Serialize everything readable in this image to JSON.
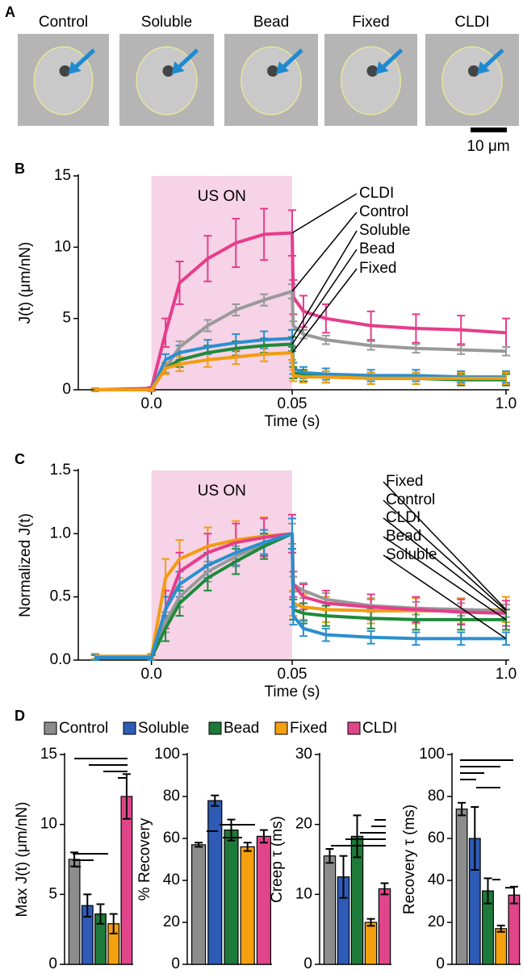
{
  "panel_a": {
    "panel": "A",
    "images": [
      "Control",
      "Soluble",
      "Bead",
      "Fixed",
      "CLDI"
    ],
    "scale_bar": "10 μm"
  },
  "chart_data": [
    {
      "type": "line",
      "panel": "B",
      "ylabel": "J(t) (μm/nN)",
      "xlabel": "Time (s)",
      "annotation": "US ON",
      "shade": [
        0,
        0.05
      ],
      "shade_color": "#f6d3e6",
      "x": [
        -0.02,
        0,
        0.005,
        0.01,
        0.02,
        0.03,
        0.04,
        0.05,
        0.055,
        0.1,
        0.2,
        0.4,
        0.6,
        0.8,
        1.0
      ],
      "xlim": [
        -0.026,
        1.0
      ],
      "xticks": [
        {
          "value": 0,
          "label": "0.0"
        },
        0.05,
        {
          "value": 1,
          "label": "1.0"
        }
      ],
      "ylim": [
        0,
        15
      ],
      "yticks": [
        0,
        5,
        10,
        15
      ],
      "series": [
        {
          "name": "CLDI",
          "color": "#e63c8c",
          "values": [
            0,
            0.1,
            4,
            7.5,
            9.2,
            10.3,
            10.9,
            11,
            6.5,
            5.5,
            5,
            4.5,
            4.3,
            4.2,
            4.0
          ],
          "errors": [
            0.1,
            0.1,
            1,
            1.5,
            1.6,
            1.7,
            1.8,
            1.6,
            1.2,
            1.1,
            1,
            1,
            1,
            1,
            1
          ]
        },
        {
          "name": "Control",
          "color": "#999999",
          "values": [
            0,
            0,
            1.5,
            3,
            4.5,
            5.6,
            6.3,
            6.9,
            4.5,
            3.9,
            3.5,
            3.1,
            2.9,
            2.8,
            2.7
          ],
          "errors": [
            0.1,
            0.1,
            0.3,
            0.4,
            0.4,
            0.4,
            0.4,
            0.5,
            0.3,
            0.3,
            0.3,
            0.3,
            0.3,
            0.3,
            0.3
          ]
        },
        {
          "name": "Soluble",
          "color": "#2a8fd0",
          "values": [
            0,
            0,
            2.1,
            2.6,
            3.0,
            3.3,
            3.5,
            3.6,
            1.5,
            1.2,
            1.1,
            1.0,
            1.0,
            0.9,
            0.9
          ],
          "errors": [
            0.1,
            0.1,
            0.4,
            0.5,
            0.5,
            0.6,
            0.6,
            0.6,
            0.4,
            0.4,
            0.4,
            0.4,
            0.4,
            0.4,
            0.4
          ]
        },
        {
          "name": "Bead",
          "color": "#1e8a3a",
          "values": [
            0,
            0,
            1.5,
            2.1,
            2.6,
            2.9,
            3.1,
            3.2,
            1.2,
            1.0,
            0.9,
            0.8,
            0.8,
            0.7,
            0.7
          ],
          "errors": [
            0.1,
            0.1,
            0.4,
            0.5,
            0.5,
            0.5,
            0.5,
            0.5,
            0.4,
            0.4,
            0.4,
            0.4,
            0.4,
            0.4,
            0.4
          ]
        },
        {
          "name": "Fixed",
          "color": "#f39c12",
          "values": [
            0,
            0,
            1.5,
            1.8,
            2.1,
            2.3,
            2.5,
            2.6,
            1.0,
            0.9,
            0.9,
            0.8,
            0.8,
            0.8,
            0.8
          ],
          "errors": [
            0.1,
            0.1,
            0.4,
            0.5,
            0.5,
            0.5,
            0.5,
            0.5,
            0.4,
            0.4,
            0.4,
            0.4,
            0.4,
            0.4,
            0.4
          ]
        }
      ]
    },
    {
      "type": "line",
      "panel": "C",
      "ylabel": "Normalized J(t)",
      "xlabel": "Time (s)",
      "annotation": "US ON",
      "shade": [
        0,
        0.05
      ],
      "shade_color": "#f6d3e6",
      "x": [
        -0.02,
        0,
        0.005,
        0.01,
        0.02,
        0.03,
        0.04,
        0.05,
        0.055,
        0.1,
        0.2,
        0.4,
        0.6,
        0.8,
        1.0
      ],
      "xlim": [
        -0.026,
        1.0
      ],
      "xticks": [
        {
          "value": 0,
          "label": "0.0"
        },
        0.05,
        {
          "value": 1,
          "label": "1.0"
        }
      ],
      "ylim": [
        0,
        1.5
      ],
      "yticks": [
        {
          "value": 0,
          "label": "0.0"
        },
        0.5,
        {
          "value": 1,
          "label": "1.0"
        },
        1.5
      ],
      "series": [
        {
          "name": "Fixed",
          "color": "#f39c12",
          "values": [
            0.03,
            0.03,
            0.65,
            0.8,
            0.9,
            0.95,
            0.98,
            1,
            0.45,
            0.42,
            0.4,
            0.39,
            0.39,
            0.39,
            0.4
          ],
          "errors": [
            0.02,
            0.02,
            0.15,
            0.15,
            0.15,
            0.15,
            0.15,
            0.15,
            0.1,
            0.1,
            0.1,
            0.1,
            0.1,
            0.1,
            0.1
          ]
        },
        {
          "name": "Control",
          "color": "#999999",
          "values": [
            0.02,
            0.02,
            0.3,
            0.5,
            0.7,
            0.82,
            0.92,
            1,
            0.6,
            0.55,
            0.48,
            0.43,
            0.41,
            0.4,
            0.39
          ],
          "errors": [
            0.02,
            0.02,
            0.08,
            0.08,
            0.08,
            0.08,
            0.08,
            0.08,
            0.06,
            0.06,
            0.05,
            0.05,
            0.05,
            0.05,
            0.05
          ]
        },
        {
          "name": "CLDI",
          "color": "#e63c8c",
          "values": [
            0.02,
            0.02,
            0.4,
            0.7,
            0.85,
            0.93,
            0.97,
            1,
            0.6,
            0.5,
            0.45,
            0.42,
            0.4,
            0.38,
            0.37
          ],
          "errors": [
            0.02,
            0.02,
            0.15,
            0.15,
            0.15,
            0.15,
            0.15,
            0.15,
            0.1,
            0.1,
            0.1,
            0.1,
            0.1,
            0.1,
            0.1
          ]
        },
        {
          "name": "Bead",
          "color": "#1e8a3a",
          "values": [
            0.02,
            0.02,
            0.25,
            0.45,
            0.65,
            0.78,
            0.9,
            1,
            0.4,
            0.37,
            0.35,
            0.33,
            0.32,
            0.32,
            0.32
          ],
          "errors": [
            0.02,
            0.02,
            0.1,
            0.1,
            0.1,
            0.1,
            0.1,
            0.12,
            0.08,
            0.08,
            0.08,
            0.08,
            0.08,
            0.08,
            0.08
          ]
        },
        {
          "name": "Soluble",
          "color": "#2a8fd0",
          "values": [
            0.02,
            0.02,
            0.4,
            0.6,
            0.75,
            0.85,
            0.93,
            1,
            0.35,
            0.25,
            0.2,
            0.18,
            0.17,
            0.17,
            0.17
          ],
          "errors": [
            0.02,
            0.02,
            0.1,
            0.1,
            0.1,
            0.1,
            0.1,
            0.12,
            0.07,
            0.06,
            0.05,
            0.05,
            0.05,
            0.05,
            0.05
          ]
        }
      ]
    },
    {
      "type": "bar",
      "panel": "D",
      "ylabel": "Max J(t) (μm/nN)",
      "categories": [
        "Control",
        "Soluble",
        "Bead",
        "Fixed",
        "CLDI"
      ],
      "colors": [
        "#8c8c8c",
        "#2d5bb5",
        "#1e7a3a",
        "#f5a00f",
        "#e0458a"
      ],
      "values": [
        7.5,
        4.2,
        3.6,
        2.9,
        12
      ],
      "errors": [
        0.5,
        0.8,
        0.7,
        0.7,
        1.6
      ],
      "ylim": [
        0,
        15
      ],
      "yticks": [
        0,
        5,
        10,
        15
      ]
    },
    {
      "type": "bar",
      "ylabel": "% Recovery",
      "values": [
        57,
        78,
        64,
        56,
        61
      ],
      "errors": [
        1,
        2.5,
        5,
        2,
        3
      ],
      "ylim": [
        0,
        100
      ],
      "yticks": [
        0,
        20,
        40,
        60,
        80,
        100
      ]
    },
    {
      "type": "bar",
      "ylabel": "Creep τ (ms)",
      "values": [
        15.5,
        12.5,
        18.3,
        6,
        10.8
      ],
      "errors": [
        1,
        3,
        3,
        0.5,
        0.8
      ],
      "ylim": [
        0,
        30
      ],
      "yticks": [
        0,
        10,
        20,
        30
      ]
    },
    {
      "type": "bar",
      "ylabel": "Recovery τ (ms)",
      "values": [
        74,
        60,
        35,
        17,
        33
      ],
      "errors": [
        3,
        15,
        6,
        1.5,
        4
      ],
      "ylim": [
        0,
        100
      ],
      "yticks": [
        0,
        20,
        40,
        60,
        80,
        100
      ]
    }
  ]
}
